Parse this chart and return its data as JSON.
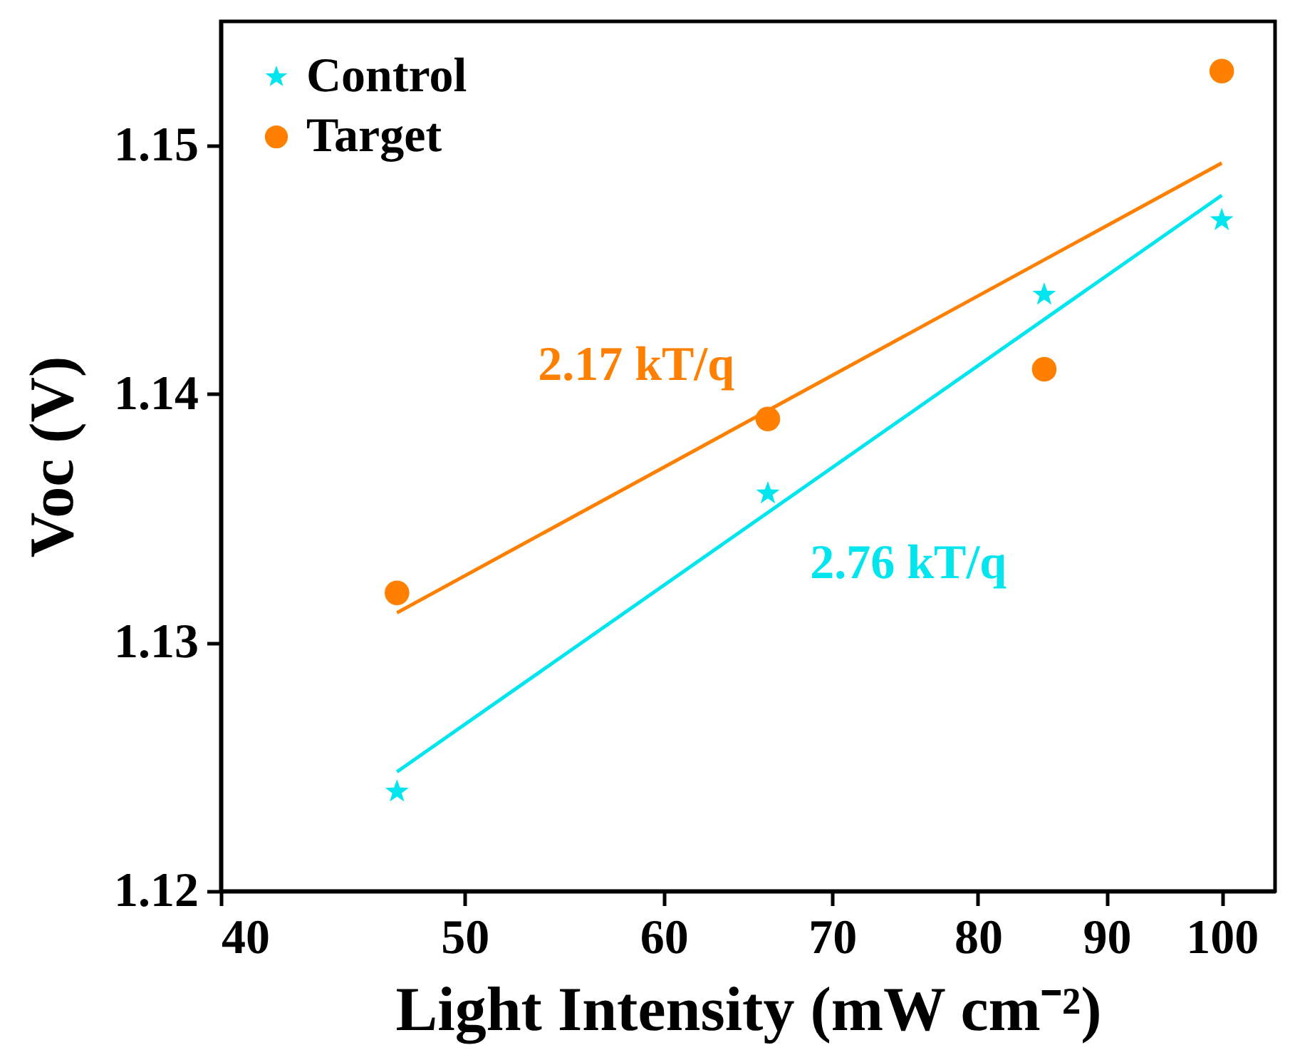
{
  "chart_data": {
    "type": "scatter",
    "xlabel": "Light Intensity (mW cm⁻²)",
    "ylabel": "Voc (V)",
    "log": "x",
    "xlim": [
      40,
      105
    ],
    "xticks": [
      40,
      50,
      60,
      70,
      80,
      90,
      100
    ],
    "ylim": [
      1.12,
      1.155
    ],
    "yticks": [
      1.12,
      1.13,
      1.14,
      1.15
    ],
    "legend": "top left",
    "series": [
      {
        "name": "Control",
        "marker": "star",
        "color": "#00e5ee",
        "x": [
          47,
          66,
          85,
          100
        ],
        "values": [
          1.124,
          1.136,
          1.144,
          1.147
        ]
      },
      {
        "name": "Target",
        "marker": "circle",
        "color": "#ff8000",
        "x": [
          47,
          66,
          85,
          100
        ],
        "values": [
          1.132,
          1.139,
          1.141,
          1.153
        ]
      },
      {
        "type": "line",
        "color": "#ff8000",
        "x": [
          47,
          100
        ],
        "values": [
          1.1312,
          1.1493
        ]
      },
      {
        "type": "line",
        "color": "#00e5ee",
        "x": [
          47,
          100
        ],
        "values": [
          1.1248,
          1.148
        ]
      }
    ],
    "annotations": [
      "2.17 kT/q",
      "2.76 kT/q"
    ]
  }
}
